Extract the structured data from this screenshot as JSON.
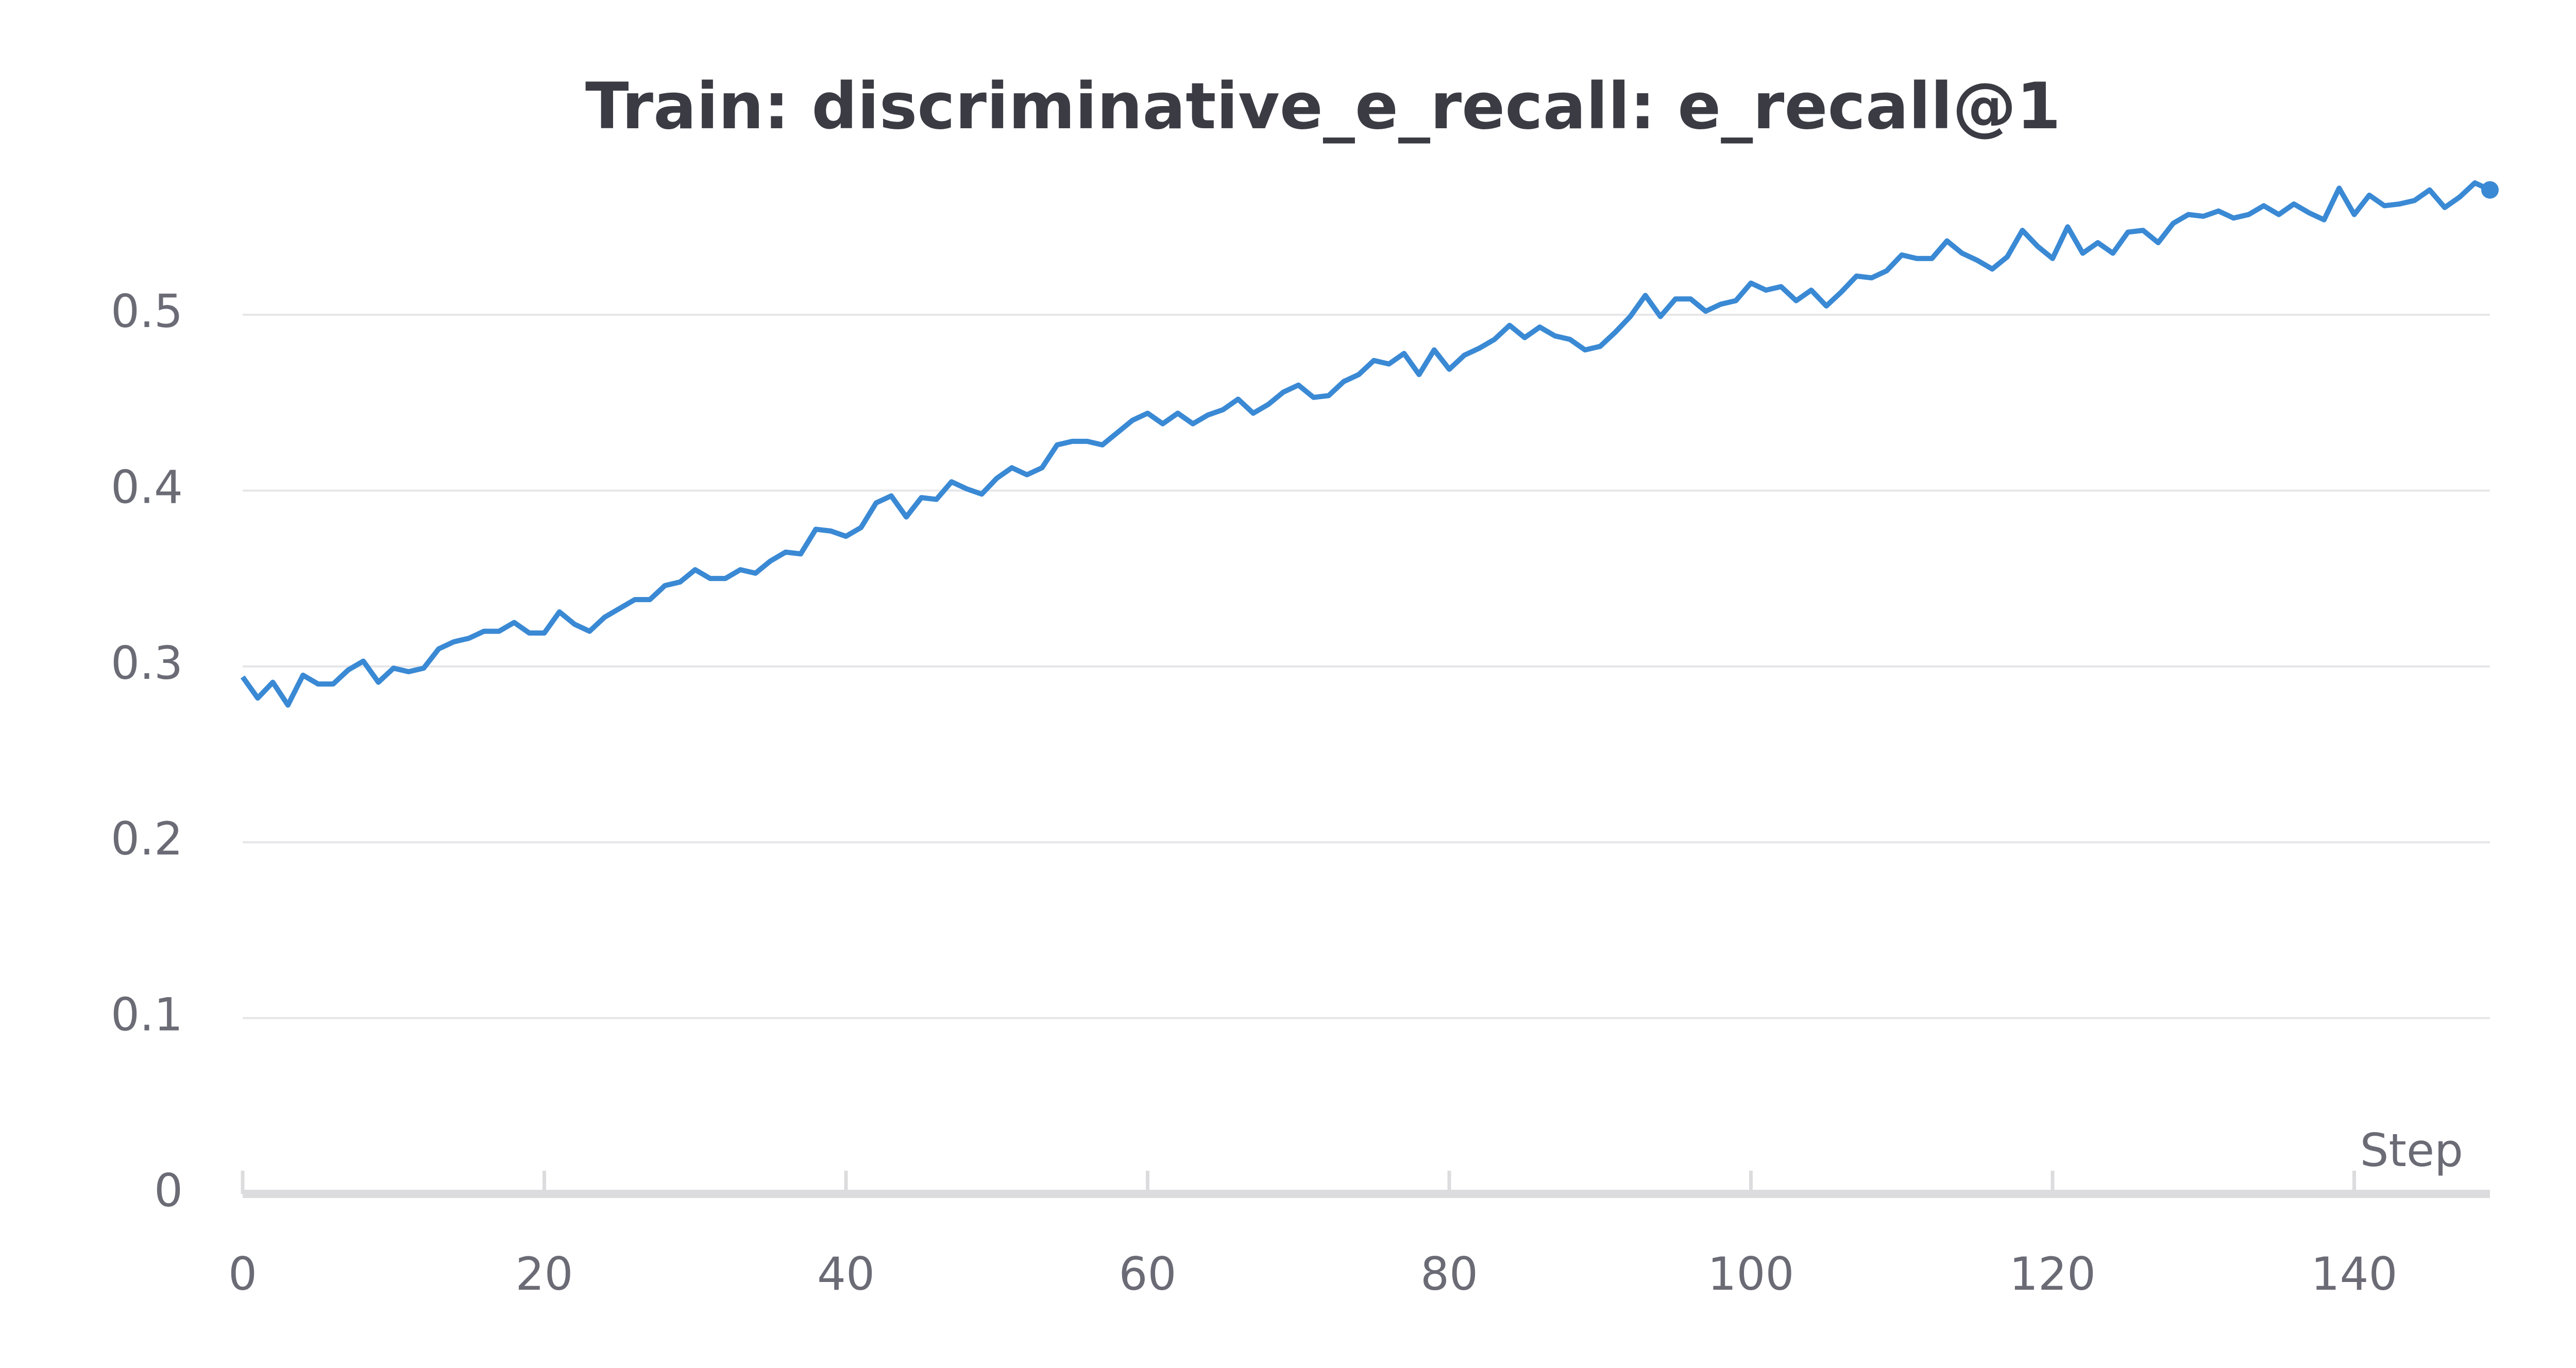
{
  "chart_data": {
    "type": "line",
    "title": "Train: discriminative_e_recall: e_recall@1",
    "x_label": "Step",
    "color": "#3a89d4",
    "xlim": [
      0,
      149
    ],
    "xticks": [
      0,
      20,
      40,
      60,
      80,
      100,
      120,
      140
    ],
    "ylim": [
      0,
      0.58
    ],
    "yticks": [
      0,
      0.1,
      0.2,
      0.3,
      0.4,
      0.5
    ],
    "grid": true,
    "x": [
      0,
      1,
      2,
      3,
      4,
      5,
      6,
      7,
      8,
      9,
      10,
      11,
      12,
      13,
      14,
      15,
      16,
      17,
      18,
      19,
      20,
      21,
      22,
      23,
      24,
      25,
      26,
      27,
      28,
      29,
      30,
      31,
      32,
      33,
      34,
      35,
      36,
      37,
      38,
      39,
      40,
      41,
      42,
      43,
      44,
      45,
      46,
      47,
      48,
      49,
      50,
      51,
      52,
      53,
      54,
      55,
      56,
      57,
      58,
      59,
      60,
      61,
      62,
      63,
      64,
      65,
      66,
      67,
      68,
      69,
      70,
      71,
      72,
      73,
      74,
      75,
      76,
      77,
      78,
      79,
      80,
      81,
      82,
      83,
      84,
      85,
      86,
      87,
      88,
      89,
      90,
      91,
      92,
      93,
      94,
      95,
      96,
      97,
      98,
      99,
      100,
      101,
      102,
      103,
      104,
      105,
      106,
      107,
      108,
      109,
      110,
      111,
      112,
      113,
      114,
      115,
      116,
      117,
      118,
      119,
      120,
      121,
      122,
      123,
      124,
      125,
      126,
      127,
      128,
      129,
      130,
      131,
      132,
      133,
      134,
      135,
      136,
      137,
      138,
      139,
      140,
      141,
      142,
      143,
      144,
      145,
      146,
      147,
      148,
      149
    ],
    "values": [
      0.294,
      0.282,
      0.291,
      0.278,
      0.295,
      0.29,
      0.29,
      0.298,
      0.303,
      0.291,
      0.299,
      0.297,
      0.299,
      0.31,
      0.314,
      0.316,
      0.32,
      0.32,
      0.325,
      0.319,
      0.319,
      0.331,
      0.324,
      0.32,
      0.328,
      0.333,
      0.338,
      0.338,
      0.346,
      0.348,
      0.355,
      0.35,
      0.35,
      0.355,
      0.353,
      0.36,
      0.365,
      0.364,
      0.378,
      0.377,
      0.374,
      0.379,
      0.393,
      0.397,
      0.385,
      0.396,
      0.395,
      0.405,
      0.401,
      0.398,
      0.407,
      0.413,
      0.409,
      0.413,
      0.426,
      0.428,
      0.428,
      0.426,
      0.433,
      0.44,
      0.444,
      0.438,
      0.444,
      0.438,
      0.443,
      0.446,
      0.452,
      0.444,
      0.449,
      0.456,
      0.46,
      0.453,
      0.454,
      0.462,
      0.466,
      0.474,
      0.472,
      0.478,
      0.466,
      0.48,
      0.469,
      0.477,
      0.481,
      0.486,
      0.494,
      0.487,
      0.493,
      0.488,
      0.486,
      0.48,
      0.482,
      0.49,
      0.499,
      0.511,
      0.499,
      0.509,
      0.509,
      0.502,
      0.506,
      0.508,
      0.518,
      0.514,
      0.516,
      0.508,
      0.514,
      0.505,
      0.513,
      0.522,
      0.521,
      0.525,
      0.534,
      0.532,
      0.532,
      0.542,
      0.535,
      0.531,
      0.526,
      0.533,
      0.548,
      0.539,
      0.532,
      0.55,
      0.535,
      0.541,
      0.535,
      0.547,
      0.548,
      0.541,
      0.552,
      0.557,
      0.556,
      0.559,
      0.555,
      0.557,
      0.562,
      0.557,
      0.563,
      0.558,
      0.554,
      0.572,
      0.557,
      0.568,
      0.562,
      0.563,
      0.565,
      0.571,
      0.561,
      0.567,
      0.575,
      0.571
    ]
  }
}
